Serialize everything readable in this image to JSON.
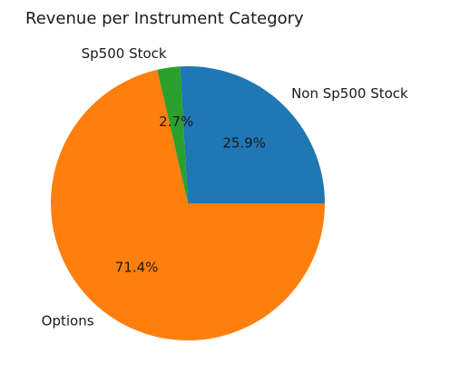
{
  "chart_data": {
    "type": "pie",
    "title": "Revenue per Instrument Category",
    "categories": [
      "Non Sp500 Stock",
      "Sp500 Stock",
      "Options"
    ],
    "values": [
      25.9,
      2.7,
      71.4
    ],
    "percent_labels": [
      "25.9%",
      "2.7%",
      "71.4%"
    ],
    "colors": [
      "#1f77b4",
      "#2ca02c",
      "#ff7f0e"
    ],
    "start_angle_deg": 0,
    "direction": "counterclockwise",
    "legend": "none"
  }
}
